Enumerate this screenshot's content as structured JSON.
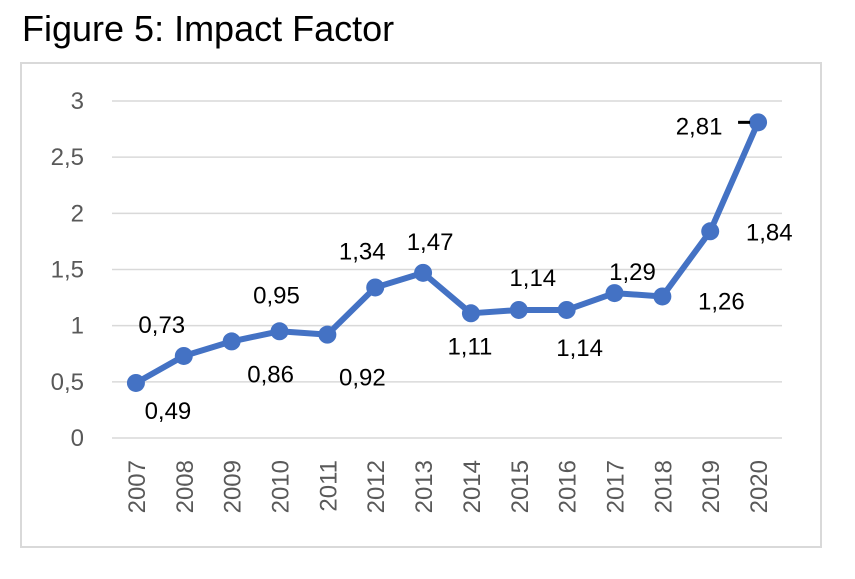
{
  "title": "Figure 5: Impact Factor",
  "chart_data": {
    "type": "line",
    "title": "Figure 5: Impact Factor",
    "xlabel": "",
    "ylabel": "",
    "categories": [
      "2007",
      "2008",
      "2009",
      "2010",
      "2011",
      "2012",
      "2013",
      "2014",
      "2015",
      "2016",
      "2017",
      "2018",
      "2019",
      "2020"
    ],
    "values": [
      0.49,
      0.73,
      0.86,
      0.95,
      0.92,
      1.34,
      1.47,
      1.11,
      1.14,
      1.14,
      1.29,
      1.26,
      1.84,
      2.81
    ],
    "data_labels": [
      "0,49",
      "0,73",
      "0,86",
      "0,95",
      "0,92",
      "1,34",
      "1,47",
      "1,11",
      "1,14",
      "1,14",
      "1,29",
      "1,26",
      "1,84",
      "2,81"
    ],
    "y_ticks": [
      "0",
      "0,5",
      "1",
      "1,5",
      "2",
      "2,5",
      "3"
    ],
    "ylim": [
      0,
      3
    ],
    "grid": true,
    "legend": "none",
    "line_color": "#4472c4"
  }
}
